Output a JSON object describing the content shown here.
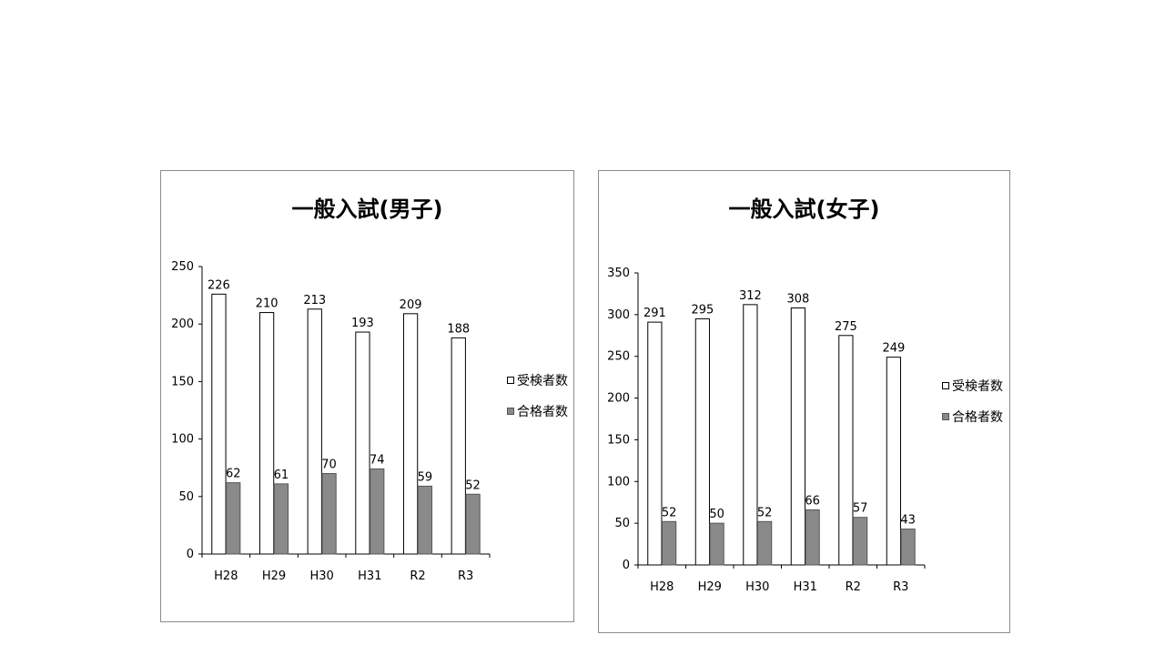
{
  "chart_data": [
    {
      "type": "bar",
      "title": "一般入試(男子)",
      "categories": [
        "H28",
        "H29",
        "H30",
        "H31",
        "R2",
        "R3"
      ],
      "ylim": [
        0,
        250
      ],
      "yticks": [
        0,
        50,
        100,
        150,
        200,
        250
      ],
      "series": [
        {
          "name": "受検者数",
          "values": [
            226,
            210,
            213,
            193,
            209,
            188
          ],
          "color": "#ffffff"
        },
        {
          "name": "合格者数",
          "values": [
            62,
            61,
            70,
            74,
            59,
            52
          ],
          "color": "#8a8a8a"
        }
      ],
      "legend": "right",
      "grid": false
    },
    {
      "type": "bar",
      "title": "一般入試(女子)",
      "categories": [
        "H28",
        "H29",
        "H30",
        "H31",
        "R2",
        "R3"
      ],
      "ylim": [
        0,
        350
      ],
      "yticks": [
        0,
        50,
        100,
        150,
        200,
        250,
        300,
        350
      ],
      "series": [
        {
          "name": "受検者数",
          "values": [
            291,
            295,
            312,
            308,
            275,
            249
          ],
          "color": "#ffffff"
        },
        {
          "name": "合格者数",
          "values": [
            52,
            50,
            52,
            66,
            57,
            43
          ],
          "color": "#8a8a8a"
        }
      ],
      "legend": "right",
      "grid": false
    }
  ]
}
